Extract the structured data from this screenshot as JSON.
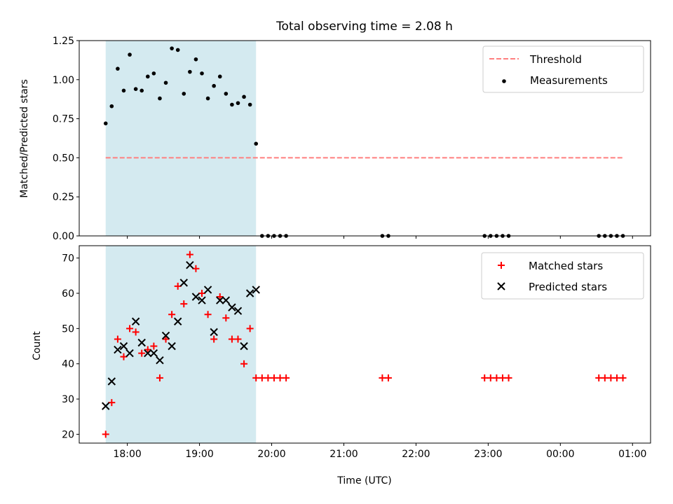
{
  "chart_data": [
    {
      "type": "scatter",
      "title": "Total observing time = 2.08 h",
      "xlabel": "",
      "ylabel": "Matched/Predicted stars",
      "xlim": [
        "17:20",
        "01:15"
      ],
      "ylim": [
        0,
        1.25
      ],
      "yticks": [
        "0.00",
        "0.25",
        "0.50",
        "0.75",
        "1.00",
        "1.25"
      ],
      "xticks": [
        "18:00",
        "19:00",
        "20:00",
        "21:00",
        "22:00",
        "23:00",
        "00:00",
        "01:00"
      ],
      "shaded_region": {
        "start": "17:42",
        "end": "19:47",
        "color": "#d4eaf0"
      },
      "threshold": {
        "name": "Threshold",
        "value": 0.5,
        "from": "17:42",
        "to": "00:53",
        "color": "#ff7f7f"
      },
      "legend_position": "top-right",
      "series": [
        {
          "name": "Measurements",
          "color": "#000000",
          "x": [
            "17:42",
            "17:47",
            "17:52",
            "17:57",
            "18:02",
            "18:07",
            "18:12",
            "18:17",
            "18:22",
            "18:27",
            "18:32",
            "18:37",
            "18:42",
            "18:47",
            "18:52",
            "18:57",
            "19:02",
            "19:07",
            "19:12",
            "19:17",
            "19:22",
            "19:27",
            "19:32",
            "19:37",
            "19:42",
            "19:47",
            "19:52",
            "19:57",
            "20:02",
            "20:07",
            "20:12",
            "21:32",
            "21:37",
            "22:57",
            "23:02",
            "23:07",
            "23:12",
            "23:17",
            "00:32",
            "00:37",
            "00:42",
            "00:47",
            "00:52"
          ],
          "y": [
            0.72,
            0.83,
            1.07,
            0.93,
            1.16,
            0.94,
            0.93,
            1.02,
            1.04,
            0.88,
            0.98,
            1.2,
            1.19,
            0.91,
            1.05,
            1.13,
            1.04,
            0.88,
            0.96,
            1.02,
            0.91,
            0.84,
            0.85,
            0.89,
            0.84,
            0.59,
            0,
            0,
            0,
            0,
            0,
            0,
            0,
            0,
            0,
            0,
            0,
            0,
            0,
            0,
            0,
            0,
            0
          ]
        }
      ]
    },
    {
      "type": "scatter",
      "title": "",
      "xlabel": "Time (UTC)",
      "ylabel": "Count",
      "xlim": [
        "17:20",
        "01:15"
      ],
      "ylim": [
        17.5,
        73.5
      ],
      "yticks": [
        "20",
        "30",
        "40",
        "50",
        "60",
        "70"
      ],
      "xticks": [
        "18:00",
        "19:00",
        "20:00",
        "21:00",
        "22:00",
        "23:00",
        "00:00",
        "01:00"
      ],
      "shaded_region": {
        "start": "17:42",
        "end": "19:47",
        "color": "#d4eaf0"
      },
      "legend_position": "top-right",
      "series": [
        {
          "name": "Matched stars",
          "color": "#ff0000",
          "marker": "plus",
          "x": [
            "17:42",
            "17:47",
            "17:52",
            "17:57",
            "18:02",
            "18:07",
            "18:12",
            "18:17",
            "18:22",
            "18:27",
            "18:32",
            "18:37",
            "18:42",
            "18:47",
            "18:52",
            "18:57",
            "19:02",
            "19:07",
            "19:12",
            "19:17",
            "19:22",
            "19:27",
            "19:32",
            "19:37",
            "19:42",
            "19:47",
            "19:52",
            "19:57",
            "20:02",
            "20:07",
            "20:12",
            "21:32",
            "21:37",
            "22:57",
            "23:02",
            "23:07",
            "23:12",
            "23:17",
            "00:32",
            "00:37",
            "00:42",
            "00:47",
            "00:52"
          ],
          "y": [
            20,
            29,
            47,
            42,
            50,
            49,
            43,
            44,
            45,
            36,
            47,
            54,
            62,
            57,
            71,
            67,
            60,
            54,
            47,
            59,
            53,
            47,
            47,
            40,
            50,
            36,
            36,
            36,
            36,
            36,
            36,
            36,
            36,
            36,
            36,
            36,
            36,
            36,
            36,
            36,
            36,
            36,
            36
          ]
        },
        {
          "name": "Predicted stars",
          "color": "#000000",
          "marker": "x",
          "x": [
            "17:42",
            "17:47",
            "17:52",
            "17:57",
            "18:02",
            "18:07",
            "18:12",
            "18:17",
            "18:22",
            "18:27",
            "18:32",
            "18:37",
            "18:42",
            "18:47",
            "18:52",
            "18:57",
            "19:02",
            "19:07",
            "19:12",
            "19:17",
            "19:22",
            "19:27",
            "19:32",
            "19:37",
            "19:42",
            "19:47"
          ],
          "y": [
            28,
            35,
            44,
            45,
            43,
            52,
            46,
            43,
            43,
            41,
            48,
            45,
            52,
            63,
            68,
            59,
            58,
            61,
            49,
            58,
            58,
            56,
            55,
            45,
            60,
            61
          ]
        }
      ]
    }
  ]
}
